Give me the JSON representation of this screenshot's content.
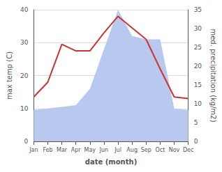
{
  "chart_data": {
    "type": "line",
    "categories": [
      "Jan",
      "Feb",
      "Mar",
      "Apr",
      "May",
      "Jun",
      "Jul",
      "Aug",
      "Sep",
      "Oct",
      "Nov",
      "Dec"
    ],
    "series": [
      {
        "type": "area",
        "color": "#b8c8ee",
        "values": [
          9.5,
          10.0,
          10.5,
          11.0,
          16.0,
          28.0,
          40.0,
          32.0,
          31.0,
          31.0,
          10.0,
          9.5
        ]
      },
      {
        "type": "line",
        "color": "#cc3333",
        "values": [
          13.5,
          18.0,
          29.5,
          27.5,
          27.5,
          33.0,
          38.0,
          34.5,
          31.0,
          22.0,
          13.5,
          13.0
        ]
      }
    ],
    "xlabel": "date (month)",
    "ylabel": "max temp (C)",
    "y2label": "med. precipitation (kg/m2)",
    "ylim": [
      0,
      40
    ],
    "yticks": [
      0,
      10,
      20,
      30,
      40
    ],
    "y2lim": [
      0,
      35
    ],
    "y2ticks": [
      0,
      5,
      10,
      15,
      20,
      25,
      30,
      35
    ],
    "grid": true
  }
}
